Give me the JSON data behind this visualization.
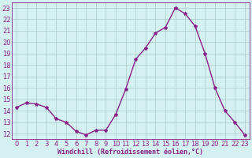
{
  "x": [
    0,
    1,
    2,
    3,
    4,
    5,
    6,
    7,
    8,
    9,
    10,
    11,
    12,
    13,
    14,
    15,
    16,
    17,
    18,
    19,
    20,
    21,
    22,
    23
  ],
  "y": [
    14.3,
    14.7,
    14.6,
    14.3,
    13.3,
    13.0,
    12.2,
    11.9,
    12.3,
    12.3,
    13.7,
    15.9,
    18.5,
    19.5,
    20.8,
    21.3,
    23.0,
    22.5,
    21.4,
    19.0,
    16.0,
    14.0,
    13.0,
    11.9
  ],
  "line_color": "#882288",
  "marker": "*",
  "marker_size": 3,
  "bg_color": "#d4f0f0",
  "grid_color": "#aacccc",
  "xlabel": "Windchill (Refroidissement éolien,°C)",
  "ylabel_ticks": [
    12,
    13,
    14,
    15,
    16,
    17,
    18,
    19,
    20,
    21,
    22,
    23
  ],
  "xlim": [
    -0.5,
    23.5
  ],
  "ylim": [
    11.5,
    23.5
  ],
  "xlabel_fontsize": 6,
  "tick_fontsize": 6,
  "line_width": 1.0,
  "fig_width": 3.2,
  "fig_height": 2.0,
  "dpi": 100
}
